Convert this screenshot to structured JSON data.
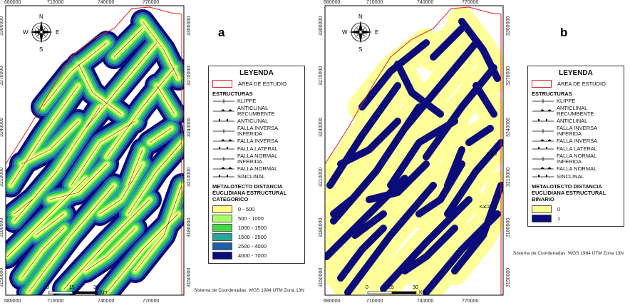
{
  "panels": [
    {
      "letter": "a",
      "x_ticks": [
        "680000",
        "710000",
        "740000",
        "770000"
      ],
      "y_ticks": [
        "3300000",
        "3270000",
        "3240000",
        "3210000",
        "3180000",
        "3150000"
      ],
      "compass": {
        "n": "N",
        "s": "S",
        "e": "E",
        "w": "W"
      },
      "scale": {
        "left": "0",
        "mid": "15",
        "right": "30",
        "unit": "Km"
      },
      "legend": {
        "title": "LEYENDA",
        "study_area": "ÁREA DE ESTUDIO",
        "structures_heading": "ESTRUCTURAS",
        "structures": [
          "KLIPPE",
          "ANTICLINAL RECUMBENTE",
          "ANTICLINAL",
          "FALLA INVERSA INFERIDA",
          "FALLA INVERSA",
          "FALLA LATERAL",
          "FALLA NORMAL INFERIDA",
          "FALLA NORMAL",
          "SINCLINAL"
        ],
        "metalotecto_heading": "METALOTECTO DISTANCIA EUCLIDIANA ESTRUCTURAL CATEGORICO",
        "classes": [
          {
            "label": "0 - 500",
            "color": "#ffff88"
          },
          {
            "label": "500 - 1000",
            "color": "#aaff66"
          },
          {
            "label": "1000 - 1500",
            "color": "#44d844"
          },
          {
            "label": "1500 - 2500",
            "color": "#2aa59a"
          },
          {
            "label": "2500 - 4000",
            "color": "#1f5fa8"
          },
          {
            "label": "4000 - 7000",
            "color": "#0b0b7a"
          }
        ]
      },
      "crs": "Sistema de Coordenadas: WGS 1984 UTM Zona 13N"
    },
    {
      "letter": "b",
      "x_ticks": [
        "680000",
        "710000",
        "740000",
        "770000"
      ],
      "y_ticks": [
        "3300000",
        "3270000",
        "3240000",
        "3210000",
        "3180000",
        "3150000"
      ],
      "compass": {
        "n": "N",
        "s": "S",
        "e": "E",
        "w": "W"
      },
      "scale": {
        "left": "0",
        "mid": "15",
        "right": "30",
        "unit": "Km"
      },
      "map_labels": [
        "KaCz",
        "KaCz"
      ],
      "legend": {
        "title": "LEYENDA",
        "study_area": "ÁREA DE ESTUDIO",
        "structures_heading": "ESTRUCTURAS",
        "structures": [
          "KLIPPE",
          "ANTICLINAL RECUMBENTE",
          "ANTICLINAL",
          "FALLA INVERSA INFERIDA",
          "FALLA INVERSA",
          "FALLA LATERAL",
          "FALLA NORMAL INFERIDA",
          "FALLA NORMAL",
          "SINCLINAL"
        ],
        "metalotecto_heading": "METALOTECTO DISTANCIA EUCLIDIANA ESTRUCTURAL BINARIO",
        "classes": [
          {
            "label": "0",
            "color": "#ffff99"
          },
          {
            "label": "1",
            "color": "#0b0b7a"
          }
        ]
      },
      "crs": "Sistema de Coordenadas: WGS 1984 UTM Zona 13N"
    }
  ],
  "colors": {
    "study_area_outline": "#e02020",
    "frame": "#000000"
  }
}
